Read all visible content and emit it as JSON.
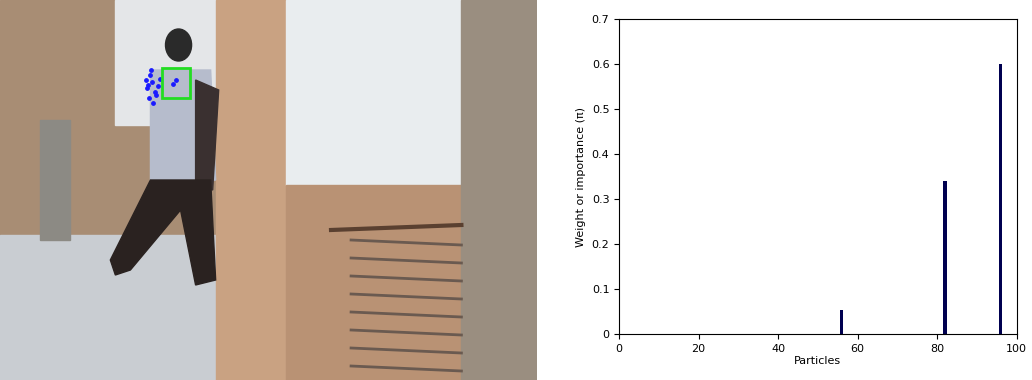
{
  "chart_data": {
    "type": "bar",
    "x": [
      56,
      82,
      96
    ],
    "values": [
      0.055,
      0.34,
      0.6
    ],
    "color": "#000050",
    "x_label": "Particles",
    "y_label": "Weight or importance (π)",
    "xlim": [
      0,
      100
    ],
    "xticks": [
      0,
      20,
      40,
      60,
      80,
      100
    ],
    "ylim": [
      0,
      0.7
    ],
    "yticks": [
      0,
      0.1,
      0.2,
      0.3,
      0.4,
      0.5,
      0.6,
      0.7
    ],
    "grid": false
  }
}
